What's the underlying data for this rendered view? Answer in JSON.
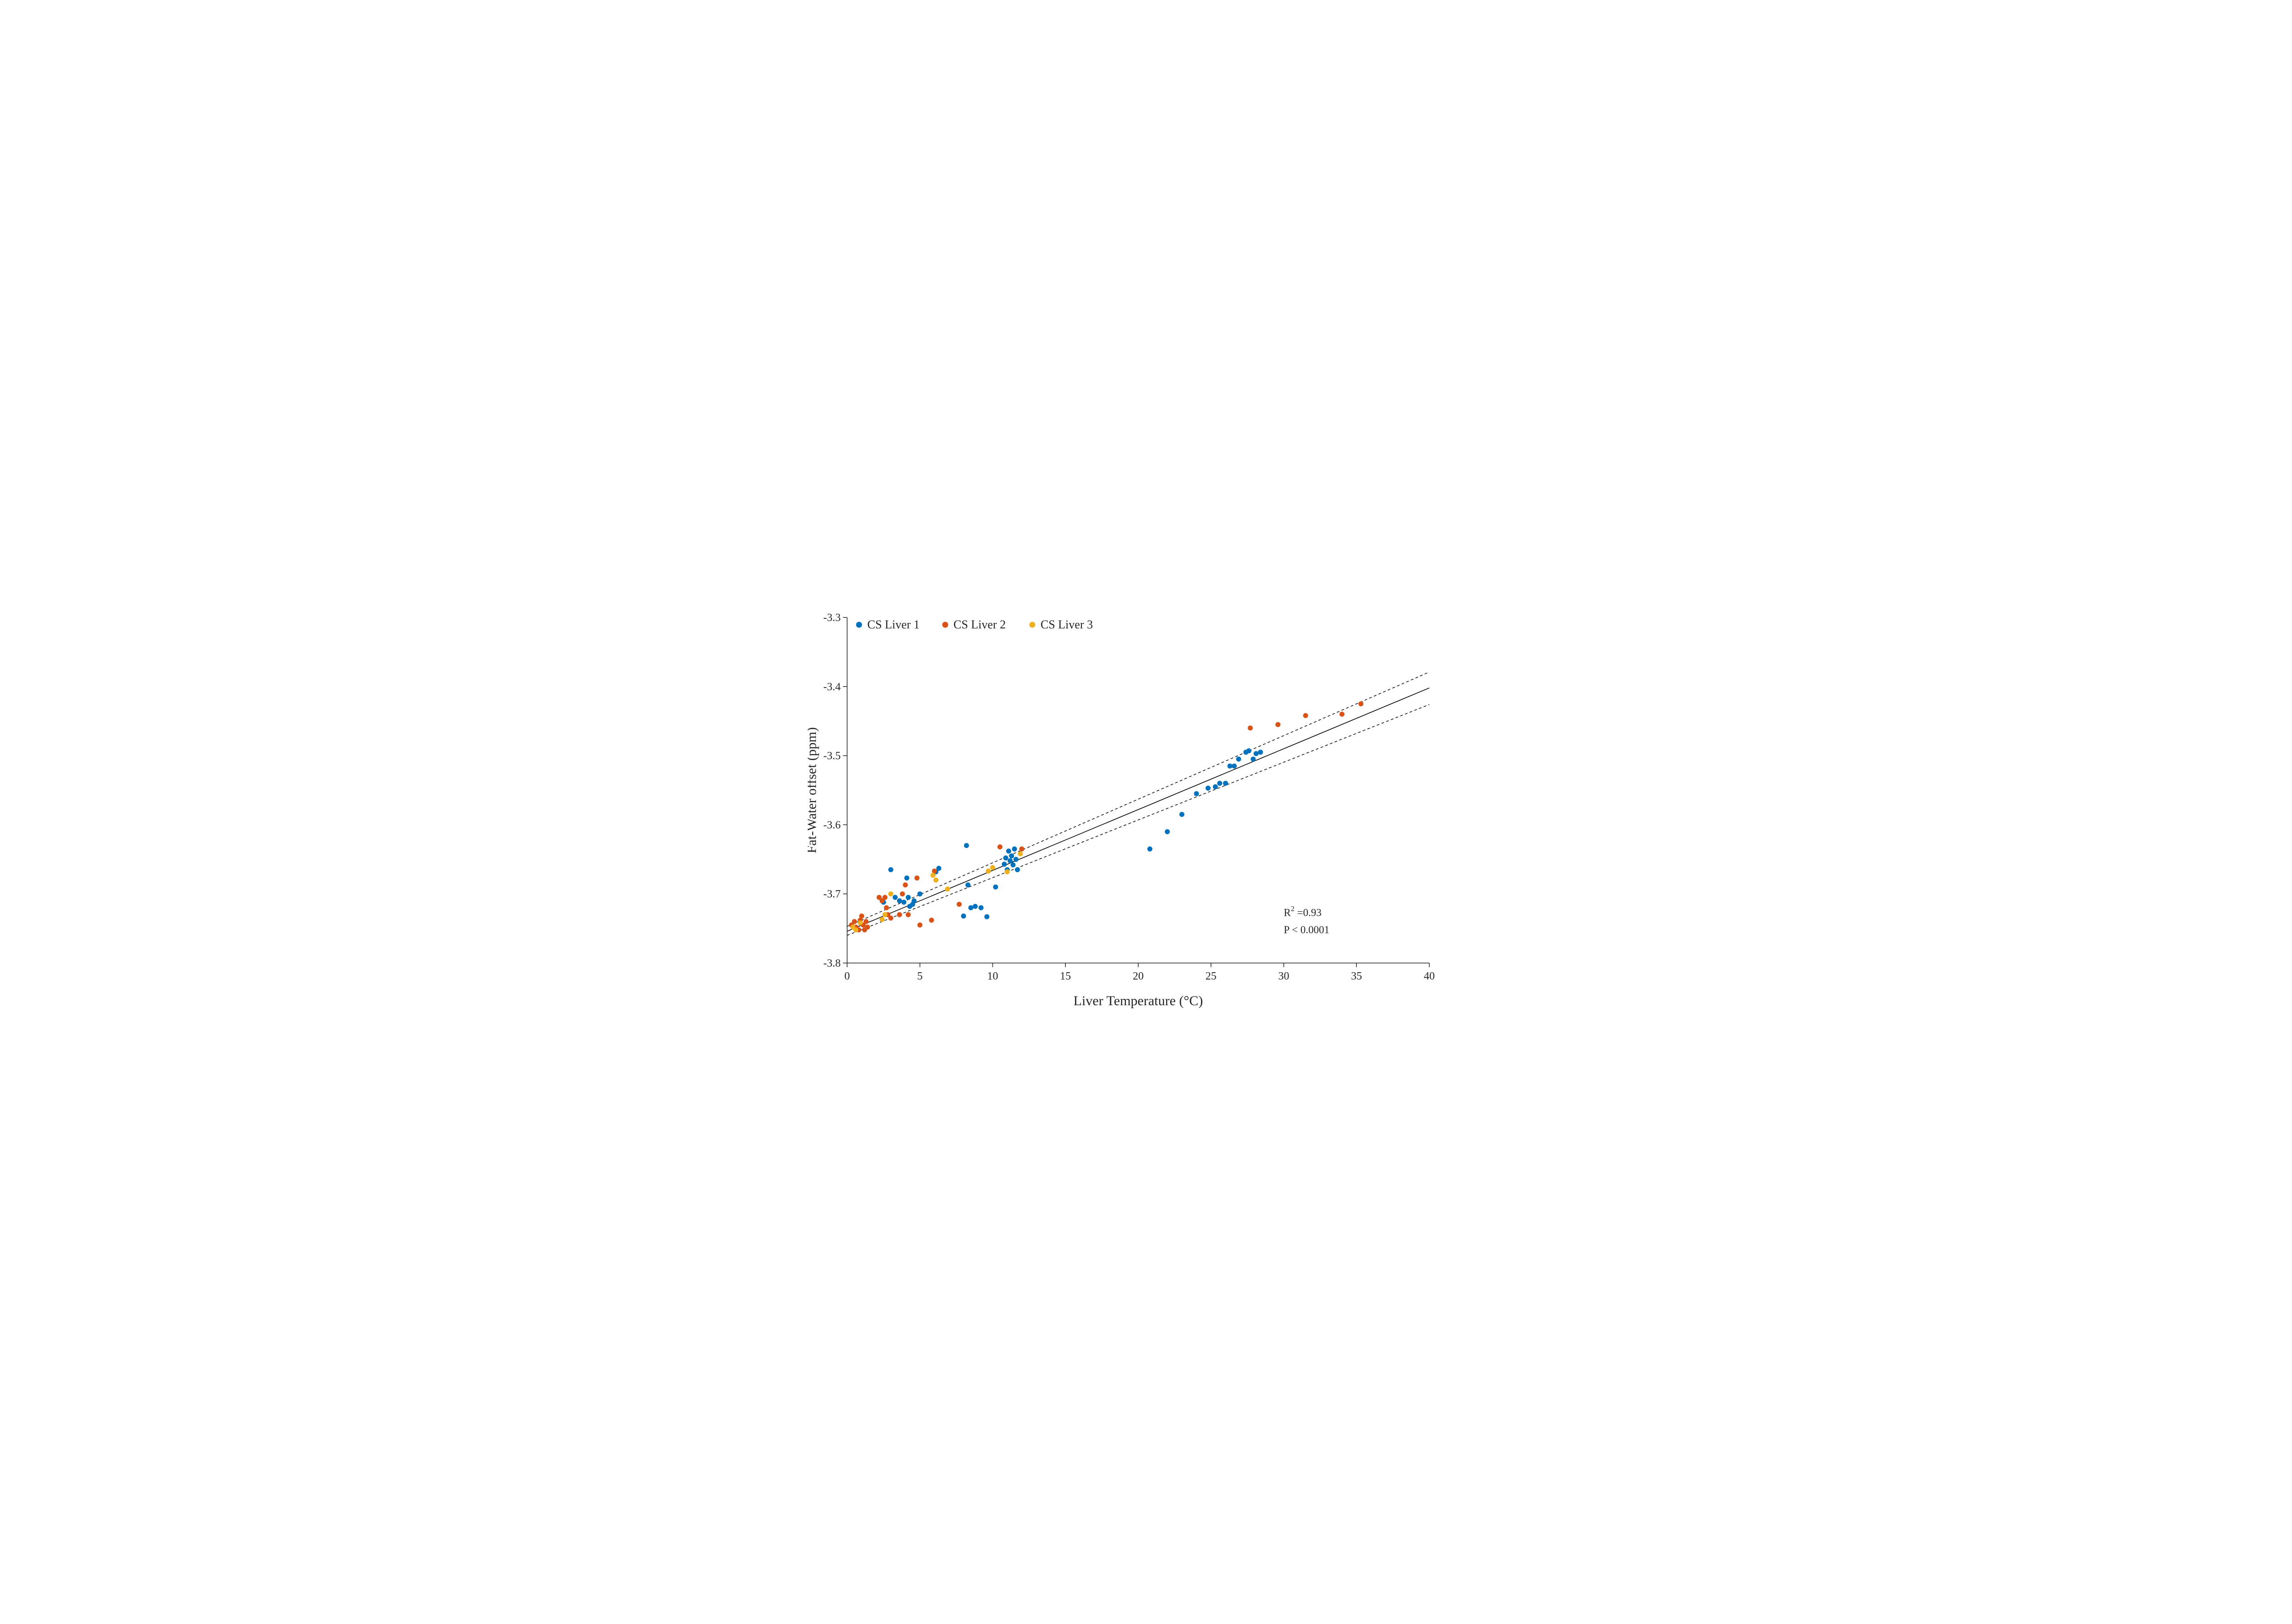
{
  "figure": {
    "background": "#ffffff"
  },
  "chart_data": {
    "type": "scatter",
    "title": "",
    "xlabel": "Liver Temperature (°C)",
    "ylabel": "Fat-Water offset (ppm)",
    "xlim": [
      0,
      40
    ],
    "ylim": [
      -3.8,
      -3.3
    ],
    "xtick_values": [
      0,
      5,
      10,
      15,
      20,
      25,
      30,
      35,
      40
    ],
    "xtick_labels": [
      "0",
      "5",
      "10",
      "15",
      "20",
      "25",
      "30",
      "35",
      "40"
    ],
    "ytick_values": [
      -3.8,
      -3.7,
      -3.6,
      -3.5,
      -3.4,
      -3.3
    ],
    "ytick_labels": [
      "-3.8",
      "-3.7",
      "-3.6",
      "-3.5",
      "-3.4",
      "-3.3"
    ],
    "grid": false,
    "axis_color": "#262626",
    "text_color": "#262626",
    "legend": {
      "position": "inside-top-left"
    },
    "stats": {
      "r_squared": 0.93,
      "p_value": "< 0.0001"
    },
    "series": [
      {
        "name": "CS Liver 1",
        "color": "#0072BD",
        "points": [
          [
            2.5,
            -3.712
          ],
          [
            3.0,
            -3.665
          ],
          [
            3.3,
            -3.705
          ],
          [
            3.6,
            -3.71
          ],
          [
            3.9,
            -3.712
          ],
          [
            4.1,
            -3.677
          ],
          [
            4.2,
            -3.705
          ],
          [
            4.3,
            -3.718
          ],
          [
            4.5,
            -3.715
          ],
          [
            4.6,
            -3.71
          ],
          [
            5.0,
            -3.7
          ],
          [
            6.1,
            -3.668
          ],
          [
            6.3,
            -3.663
          ],
          [
            8.0,
            -3.732
          ],
          [
            8.2,
            -3.63
          ],
          [
            8.3,
            -3.687
          ],
          [
            8.5,
            -3.72
          ],
          [
            8.8,
            -3.718
          ],
          [
            9.2,
            -3.72
          ],
          [
            9.6,
            -3.733
          ],
          [
            10.2,
            -3.69
          ],
          [
            10.8,
            -3.657
          ],
          [
            10.9,
            -3.648
          ],
          [
            11.0,
            -3.665
          ],
          [
            11.1,
            -3.638
          ],
          [
            11.2,
            -3.652
          ],
          [
            11.3,
            -3.645
          ],
          [
            11.4,
            -3.658
          ],
          [
            11.5,
            -3.635
          ],
          [
            11.6,
            -3.65
          ],
          [
            11.7,
            -3.665
          ],
          [
            20.8,
            -3.635
          ],
          [
            22.0,
            -3.61
          ],
          [
            23.0,
            -3.585
          ],
          [
            24.0,
            -3.555
          ],
          [
            24.8,
            -3.547
          ],
          [
            25.3,
            -3.545
          ],
          [
            25.6,
            -3.54
          ],
          [
            26.0,
            -3.54
          ],
          [
            26.3,
            -3.515
          ],
          [
            26.6,
            -3.515
          ],
          [
            26.9,
            -3.505
          ],
          [
            27.4,
            -3.495
          ],
          [
            27.6,
            -3.493
          ],
          [
            27.9,
            -3.505
          ],
          [
            28.1,
            -3.497
          ],
          [
            28.4,
            -3.495
          ]
        ]
      },
      {
        "name": "CS Liver 2",
        "color": "#D95319",
        "points": [
          [
            0.3,
            -3.745
          ],
          [
            0.5,
            -3.74
          ],
          [
            0.6,
            -3.748
          ],
          [
            0.8,
            -3.752
          ],
          [
            0.9,
            -3.738
          ],
          [
            1.0,
            -3.732
          ],
          [
            1.1,
            -3.745
          ],
          [
            1.2,
            -3.752
          ],
          [
            1.3,
            -3.74
          ],
          [
            1.4,
            -3.748
          ],
          [
            2.2,
            -3.705
          ],
          [
            2.4,
            -3.71
          ],
          [
            2.6,
            -3.705
          ],
          [
            2.7,
            -3.72
          ],
          [
            2.8,
            -3.73
          ],
          [
            3.0,
            -3.735
          ],
          [
            3.6,
            -3.73
          ],
          [
            3.8,
            -3.7
          ],
          [
            4.0,
            -3.687
          ],
          [
            4.2,
            -3.73
          ],
          [
            4.8,
            -3.677
          ],
          [
            5.0,
            -3.745
          ],
          [
            5.8,
            -3.738
          ],
          [
            6.0,
            -3.667
          ],
          [
            7.7,
            -3.715
          ],
          [
            10.5,
            -3.632
          ],
          [
            12.0,
            -3.635
          ],
          [
            27.7,
            -3.46
          ],
          [
            29.6,
            -3.455
          ],
          [
            31.5,
            -3.442
          ],
          [
            34.0,
            -3.44
          ],
          [
            35.3,
            -3.425
          ]
        ]
      },
      {
        "name": "CS Liver 3",
        "color": "#EDB120",
        "points": [
          [
            0.4,
            -3.748
          ],
          [
            0.6,
            -3.752
          ],
          [
            0.9,
            -3.742
          ],
          [
            2.4,
            -3.737
          ],
          [
            2.6,
            -3.73
          ],
          [
            3.0,
            -3.7
          ],
          [
            5.9,
            -3.673
          ],
          [
            6.1,
            -3.68
          ],
          [
            6.9,
            -3.693
          ],
          [
            9.7,
            -3.667
          ],
          [
            10.0,
            -3.662
          ],
          [
            11.0,
            -3.668
          ],
          [
            11.9,
            -3.642
          ]
        ]
      }
    ],
    "fit_line": {
      "x": [
        0,
        40
      ],
      "y": [
        -3.754,
        -3.402
      ],
      "style": "solid",
      "color": "#000000"
    },
    "confidence_interval_lines": [
      {
        "x": [
          0,
          40
        ],
        "y": [
          -3.747,
          -3.379
        ],
        "style": "dashed",
        "color": "#000000"
      },
      {
        "x": [
          0,
          40
        ],
        "y": [
          -3.76,
          -3.426
        ],
        "style": "dashed",
        "color": "#000000"
      }
    ],
    "annotations": [
      {
        "x": 30,
        "y": -3.732,
        "parts": [
          {
            "text": "R"
          },
          {
            "text": "2",
            "sup": true
          },
          {
            "text": " =0.93"
          }
        ]
      },
      {
        "x": 30,
        "y": -3.757,
        "parts": [
          {
            "text": "P < 0.0001"
          }
        ]
      }
    ]
  }
}
